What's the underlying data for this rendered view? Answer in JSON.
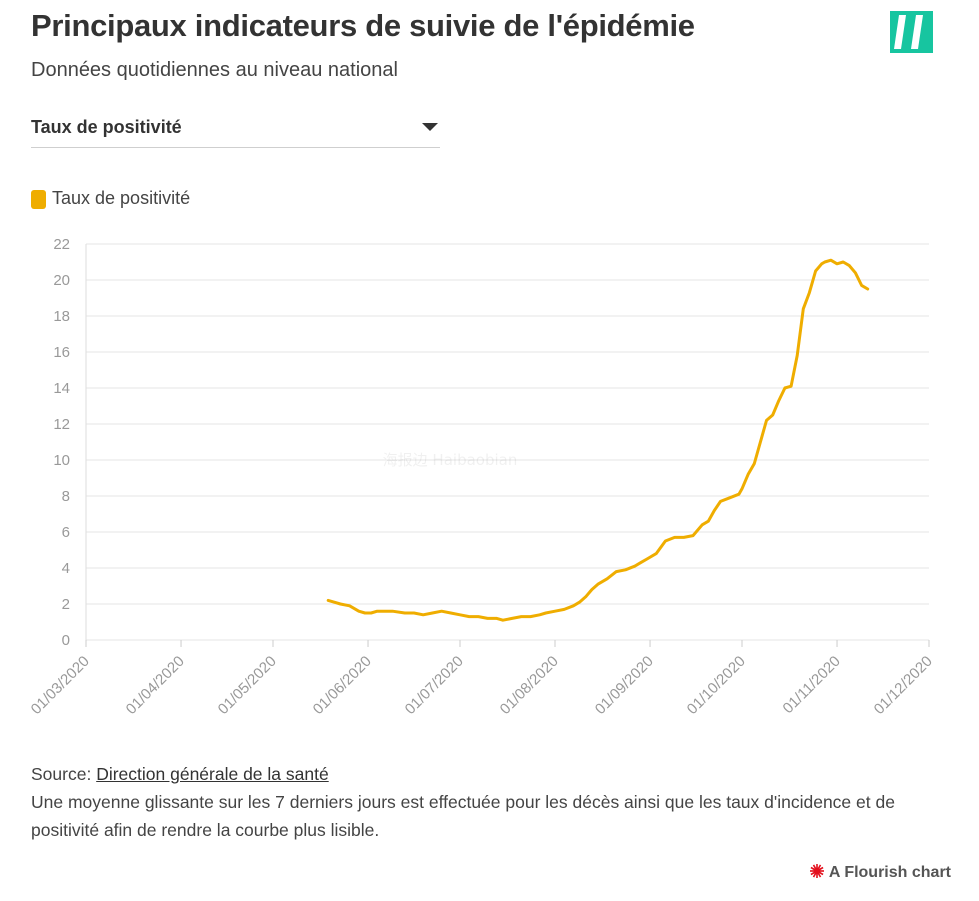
{
  "header": {
    "title": "Principaux indicateurs de suivie de l'épidémie",
    "subtitle": "Données quotidiennes au niveau national"
  },
  "controls": {
    "dropdown_selected": "Taux de positivité"
  },
  "legend": {
    "items": [
      {
        "label": "Taux de positivité",
        "color": "#efad00"
      }
    ]
  },
  "chart_data": {
    "type": "line",
    "title": "Principaux indicateurs de suivie de l'épidémie",
    "xlabel": "",
    "ylabel": "",
    "ylim": [
      0,
      22
    ],
    "yticks": [
      "0",
      "2",
      "4",
      "6",
      "8",
      "10",
      "12",
      "14",
      "16",
      "18",
      "20",
      "22"
    ],
    "xdomain_days": [
      0,
      275
    ],
    "xticks": [
      {
        "label": "01/03/2020",
        "day": 0
      },
      {
        "label": "01/04/2020",
        "day": 31
      },
      {
        "label": "01/05/2020",
        "day": 61
      },
      {
        "label": "01/06/2020",
        "day": 92
      },
      {
        "label": "01/07/2020",
        "day": 122
      },
      {
        "label": "01/08/2020",
        "day": 153
      },
      {
        "label": "01/09/2020",
        "day": 184
      },
      {
        "label": "01/10/2020",
        "day": 214
      },
      {
        "label": "01/11/2020",
        "day": 245
      },
      {
        "label": "01/12/2020",
        "day": 275
      }
    ],
    "grid": true,
    "series": [
      {
        "name": "Taux de positivité",
        "color": "#efad00",
        "x_days": [
          79,
          81,
          83,
          86,
          89,
          91,
          93,
          95,
          97,
          100,
          104,
          107,
          110,
          113,
          116,
          119,
          122,
          125,
          128,
          131,
          134,
          136,
          139,
          142,
          145,
          148,
          150,
          153,
          156,
          159,
          161,
          163,
          165,
          167,
          170,
          173,
          176,
          179,
          181,
          183,
          186,
          189,
          192,
          195,
          198,
          201,
          203,
          205,
          207,
          210,
          213,
          214,
          216,
          218,
          220,
          222,
          224,
          226,
          228,
          230,
          232,
          234,
          236,
          238,
          240,
          241,
          243,
          245,
          247,
          249,
          251,
          253,
          255
        ],
        "values": [
          2.2,
          2.1,
          2.0,
          1.9,
          1.6,
          1.5,
          1.5,
          1.6,
          1.6,
          1.6,
          1.5,
          1.5,
          1.4,
          1.5,
          1.6,
          1.5,
          1.4,
          1.3,
          1.3,
          1.2,
          1.2,
          1.1,
          1.2,
          1.3,
          1.3,
          1.4,
          1.5,
          1.6,
          1.7,
          1.9,
          2.1,
          2.4,
          2.8,
          3.1,
          3.4,
          3.8,
          3.9,
          4.1,
          4.3,
          4.5,
          4.8,
          5.5,
          5.7,
          5.7,
          5.8,
          6.4,
          6.6,
          7.2,
          7.7,
          7.9,
          8.1,
          8.4,
          9.2,
          9.8,
          11.0,
          12.2,
          12.5,
          13.3,
          14.0,
          14.1,
          15.8,
          18.4,
          19.3,
          20.5,
          20.9,
          21.0,
          21.1,
          20.9,
          21.0,
          20.8,
          20.4,
          19.7,
          19.5
        ]
      }
    ],
    "watermark": "海报边 Haibaobian"
  },
  "footer": {
    "source_prefix": "Source: ",
    "source_link": "Direction générale de la santé",
    "note": "Une moyenne glissante sur les 7 derniers jours est effectuée pour les décès ainsi que les taux d'incidence et de positivité afin de rendre la courbe plus lisible."
  },
  "credit": {
    "label": "A Flourish chart",
    "icon": "flourish-burst-icon",
    "icon_color": "#e3101d"
  }
}
